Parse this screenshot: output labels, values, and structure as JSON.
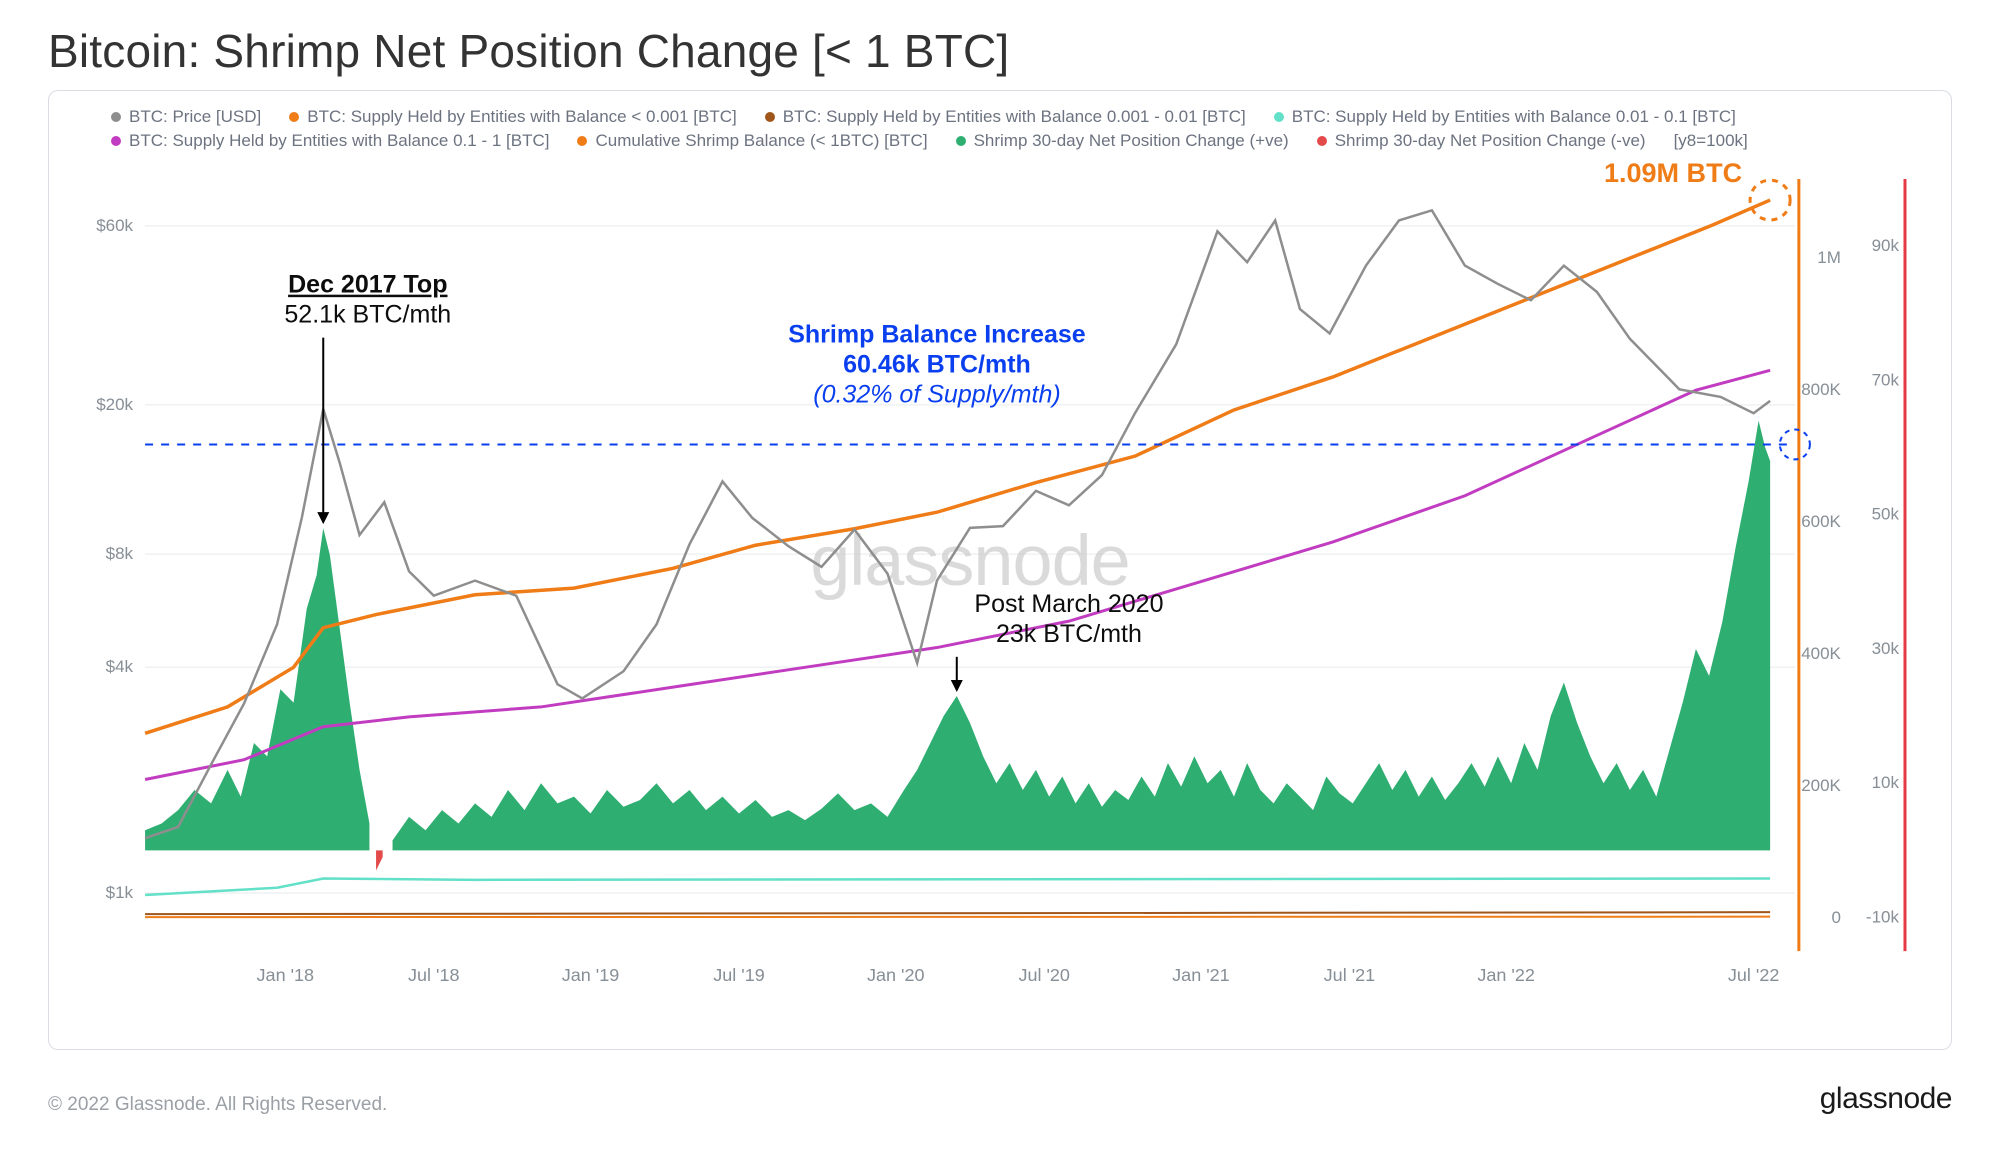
{
  "title": "Bitcoin: Shrimp Net Position Change [< 1 BTC]",
  "copyright": "© 2022 Glassnode. All Rights Reserved.",
  "brand": "glassnode",
  "watermark": "glassnode",
  "colors": {
    "price": "#8e8e8e",
    "supply_lt_0001": "#ef7c17",
    "supply_0001_001": "#a0561a",
    "supply_001_01": "#63e0c8",
    "supply_01_1": "#c13cc1",
    "cum_balance": "#ef7c17",
    "pos_bar": "#2fae72",
    "neg_bar": "#e34b4b",
    "grid": "#e7eaee",
    "frame": "#d9dde3",
    "right_axis_rule": "#ef7c17",
    "far_right_rule": "#e53946",
    "dashed_ref": "#0a3ff0"
  },
  "legend": [
    {
      "label": "BTC: Price [USD]",
      "colorKey": "price"
    },
    {
      "label": "BTC: Supply Held by Entities with Balance < 0.001 [BTC]",
      "colorKey": "supply_lt_0001"
    },
    {
      "label": "BTC: Supply Held by Entities with Balance 0.001 - 0.01 [BTC]",
      "colorKey": "supply_0001_001"
    },
    {
      "label": "BTC: Supply Held by Entities with Balance 0.01 - 0.1 [BTC]",
      "colorKey": "supply_001_01"
    },
    {
      "label": "BTC: Supply Held by Entities with Balance 0.1 - 1 [BTC]",
      "colorKey": "supply_01_1"
    },
    {
      "label": "Cumulative Shrimp Balance (< 1BTC) [BTC]",
      "colorKey": "cum_balance"
    },
    {
      "label": "Shrimp 30-day Net Position Change (+ve)",
      "colorKey": "pos_bar"
    },
    {
      "label": "Shrimp 30-day Net Position Change (-ve)",
      "colorKey": "neg_bar"
    },
    {
      "label": "[y8=100k]",
      "colorKey": null
    }
  ],
  "annotations": {
    "dec2017": {
      "head": "Dec 2017 Top",
      "sub": "52.1k BTC/mth"
    },
    "post2020": {
      "head": "Post March 2020",
      "sub": "23k BTC/mth"
    },
    "increase": {
      "line1": "Shrimp Balance Increase",
      "line2": "60.46k BTC/mth",
      "line3": "(0.32% of Supply/mth)"
    },
    "tip": "1.09M BTC"
  },
  "axes_left_log": {
    "ticks": [
      "$1k",
      "$4k",
      "$8k",
      "$20k",
      "$60k"
    ],
    "values": [
      1000,
      4000,
      8000,
      20000,
      60000
    ]
  },
  "axes_right_linear_1": {
    "ticks": [
      "0",
      "200K",
      "400K",
      "600K",
      "800K",
      "1M"
    ],
    "values": [
      0,
      200000,
      400000,
      600000,
      800000,
      1000000
    ],
    "range": [
      -50000,
      1120000
    ]
  },
  "axes_right_linear_2": {
    "ticks": [
      "-10k",
      "10k",
      "30k",
      "50k",
      "70k",
      "90k"
    ],
    "values": [
      -10000,
      10000,
      30000,
      50000,
      70000,
      90000
    ],
    "range": [
      -15000,
      100000
    ]
  },
  "x_axis": {
    "labels": [
      "Jan '18",
      "Jul '18",
      "Jan '19",
      "Jul '19",
      "Jan '20",
      "Jul '20",
      "Jan '21",
      "Jul '21",
      "Jan '22",
      "Jul '22"
    ],
    "t_values": [
      0.085,
      0.175,
      0.27,
      0.36,
      0.455,
      0.545,
      0.64,
      0.73,
      0.825,
      0.975
    ]
  },
  "series": {
    "price": [
      [
        0.0,
        1400
      ],
      [
        0.02,
        1500
      ],
      [
        0.04,
        2200
      ],
      [
        0.06,
        3200
      ],
      [
        0.08,
        5200
      ],
      [
        0.095,
        10000
      ],
      [
        0.108,
        19500
      ],
      [
        0.118,
        14000
      ],
      [
        0.13,
        9000
      ],
      [
        0.145,
        11000
      ],
      [
        0.16,
        7200
      ],
      [
        0.175,
        6200
      ],
      [
        0.2,
        6800
      ],
      [
        0.225,
        6200
      ],
      [
        0.25,
        3600
      ],
      [
        0.265,
        3300
      ],
      [
        0.29,
        3900
      ],
      [
        0.31,
        5200
      ],
      [
        0.33,
        8500
      ],
      [
        0.35,
        12500
      ],
      [
        0.368,
        10000
      ],
      [
        0.39,
        8400
      ],
      [
        0.41,
        7400
      ],
      [
        0.43,
        9300
      ],
      [
        0.45,
        7100
      ],
      [
        0.468,
        4100
      ],
      [
        0.48,
        6800
      ],
      [
        0.5,
        9400
      ],
      [
        0.52,
        9500
      ],
      [
        0.54,
        11800
      ],
      [
        0.56,
        10800
      ],
      [
        0.58,
        13000
      ],
      [
        0.6,
        19000
      ],
      [
        0.625,
        29000
      ],
      [
        0.65,
        58000
      ],
      [
        0.668,
        48000
      ],
      [
        0.685,
        62000
      ],
      [
        0.7,
        36000
      ],
      [
        0.718,
        31000
      ],
      [
        0.74,
        47000
      ],
      [
        0.76,
        62000
      ],
      [
        0.78,
        66000
      ],
      [
        0.8,
        47000
      ],
      [
        0.82,
        42000
      ],
      [
        0.84,
        38000
      ],
      [
        0.86,
        47000
      ],
      [
        0.88,
        40000
      ],
      [
        0.9,
        30000
      ],
      [
        0.93,
        22000
      ],
      [
        0.955,
        21000
      ],
      [
        0.975,
        19000
      ],
      [
        0.985,
        20500
      ]
    ],
    "cum_balance": [
      [
        0.0,
        280000
      ],
      [
        0.05,
        320000
      ],
      [
        0.09,
        380000
      ],
      [
        0.108,
        440000
      ],
      [
        0.14,
        460000
      ],
      [
        0.2,
        490000
      ],
      [
        0.26,
        500000
      ],
      [
        0.32,
        530000
      ],
      [
        0.37,
        565000
      ],
      [
        0.43,
        590000
      ],
      [
        0.48,
        615000
      ],
      [
        0.54,
        660000
      ],
      [
        0.6,
        700000
      ],
      [
        0.66,
        770000
      ],
      [
        0.72,
        820000
      ],
      [
        0.78,
        880000
      ],
      [
        0.84,
        940000
      ],
      [
        0.9,
        1000000
      ],
      [
        0.95,
        1050000
      ],
      [
        0.985,
        1088000
      ]
    ],
    "supply_01_1": [
      [
        0.0,
        210000
      ],
      [
        0.06,
        240000
      ],
      [
        0.108,
        290000
      ],
      [
        0.16,
        305000
      ],
      [
        0.24,
        320000
      ],
      [
        0.32,
        350000
      ],
      [
        0.4,
        380000
      ],
      [
        0.48,
        410000
      ],
      [
        0.56,
        450000
      ],
      [
        0.64,
        510000
      ],
      [
        0.72,
        570000
      ],
      [
        0.8,
        640000
      ],
      [
        0.87,
        720000
      ],
      [
        0.94,
        800000
      ],
      [
        0.985,
        830000
      ]
    ],
    "supply_001_01": [
      [
        0.0,
        35000
      ],
      [
        0.08,
        46000
      ],
      [
        0.108,
        60000
      ],
      [
        0.2,
        58000
      ],
      [
        0.985,
        60000
      ]
    ],
    "supply_lt_0001": [
      [
        0.0,
        1500
      ],
      [
        0.985,
        2200
      ]
    ],
    "supply_0001_001": [
      [
        0.0,
        6000
      ],
      [
        0.985,
        9000
      ]
    ],
    "net_pos_change": [
      [
        0.0,
        3000
      ],
      [
        0.01,
        4000
      ],
      [
        0.02,
        6000
      ],
      [
        0.03,
        9000
      ],
      [
        0.04,
        7000
      ],
      [
        0.05,
        12000
      ],
      [
        0.058,
        8000
      ],
      [
        0.066,
        16000
      ],
      [
        0.074,
        14000
      ],
      [
        0.082,
        24000
      ],
      [
        0.09,
        22000
      ],
      [
        0.098,
        36000
      ],
      [
        0.104,
        41000
      ],
      [
        0.108,
        48000
      ],
      [
        0.112,
        44000
      ],
      [
        0.118,
        33000
      ],
      [
        0.124,
        22000
      ],
      [
        0.13,
        12000
      ],
      [
        0.136,
        4000
      ],
      [
        0.14,
        -3000
      ],
      [
        0.144,
        -1000
      ],
      [
        0.15,
        1500
      ],
      [
        0.16,
        5000
      ],
      [
        0.17,
        3000
      ],
      [
        0.18,
        6000
      ],
      [
        0.19,
        4000
      ],
      [
        0.2,
        7000
      ],
      [
        0.21,
        5000
      ],
      [
        0.22,
        9000
      ],
      [
        0.23,
        6000
      ],
      [
        0.24,
        10000
      ],
      [
        0.25,
        7000
      ],
      [
        0.26,
        8000
      ],
      [
        0.27,
        5500
      ],
      [
        0.28,
        9000
      ],
      [
        0.29,
        6500
      ],
      [
        0.3,
        7500
      ],
      [
        0.31,
        10000
      ],
      [
        0.32,
        7000
      ],
      [
        0.33,
        9000
      ],
      [
        0.34,
        6000
      ],
      [
        0.35,
        8000
      ],
      [
        0.36,
        5500
      ],
      [
        0.37,
        7500
      ],
      [
        0.38,
        5000
      ],
      [
        0.39,
        6000
      ],
      [
        0.4,
        4500
      ],
      [
        0.41,
        6200
      ],
      [
        0.42,
        8500
      ],
      [
        0.43,
        6000
      ],
      [
        0.44,
        7000
      ],
      [
        0.45,
        5000
      ],
      [
        0.46,
        9000
      ],
      [
        0.468,
        12000
      ],
      [
        0.476,
        16000
      ],
      [
        0.484,
        20000
      ],
      [
        0.492,
        23000
      ],
      [
        0.5,
        19000
      ],
      [
        0.508,
        14000
      ],
      [
        0.516,
        10000
      ],
      [
        0.524,
        13000
      ],
      [
        0.532,
        9000
      ],
      [
        0.54,
        12000
      ],
      [
        0.548,
        8000
      ],
      [
        0.556,
        11000
      ],
      [
        0.564,
        7000
      ],
      [
        0.572,
        10000
      ],
      [
        0.58,
        6500
      ],
      [
        0.588,
        9000
      ],
      [
        0.596,
        7500
      ],
      [
        0.604,
        11000
      ],
      [
        0.612,
        8000
      ],
      [
        0.62,
        13000
      ],
      [
        0.628,
        9500
      ],
      [
        0.636,
        14000
      ],
      [
        0.644,
        10000
      ],
      [
        0.652,
        12000
      ],
      [
        0.66,
        8000
      ],
      [
        0.668,
        13000
      ],
      [
        0.676,
        9000
      ],
      [
        0.684,
        7000
      ],
      [
        0.692,
        10000
      ],
      [
        0.7,
        8000
      ],
      [
        0.708,
        6000
      ],
      [
        0.716,
        11000
      ],
      [
        0.724,
        8500
      ],
      [
        0.732,
        7000
      ],
      [
        0.74,
        10000
      ],
      [
        0.748,
        13000
      ],
      [
        0.756,
        9000
      ],
      [
        0.764,
        12000
      ],
      [
        0.772,
        8000
      ],
      [
        0.78,
        11000
      ],
      [
        0.788,
        7500
      ],
      [
        0.796,
        10000
      ],
      [
        0.804,
        13000
      ],
      [
        0.812,
        9500
      ],
      [
        0.82,
        14000
      ],
      [
        0.828,
        10000
      ],
      [
        0.836,
        16000
      ],
      [
        0.844,
        12000
      ],
      [
        0.852,
        20000
      ],
      [
        0.86,
        25000
      ],
      [
        0.868,
        19000
      ],
      [
        0.876,
        14000
      ],
      [
        0.884,
        10000
      ],
      [
        0.892,
        13000
      ],
      [
        0.9,
        9000
      ],
      [
        0.908,
        12000
      ],
      [
        0.916,
        8000
      ],
      [
        0.924,
        15000
      ],
      [
        0.932,
        22000
      ],
      [
        0.94,
        30000
      ],
      [
        0.948,
        26000
      ],
      [
        0.956,
        34000
      ],
      [
        0.964,
        45000
      ],
      [
        0.972,
        55000
      ],
      [
        0.978,
        64000
      ],
      [
        0.982,
        60000
      ],
      [
        0.985,
        58000
      ]
    ]
  },
  "dashed_ref_value": 60460
}
